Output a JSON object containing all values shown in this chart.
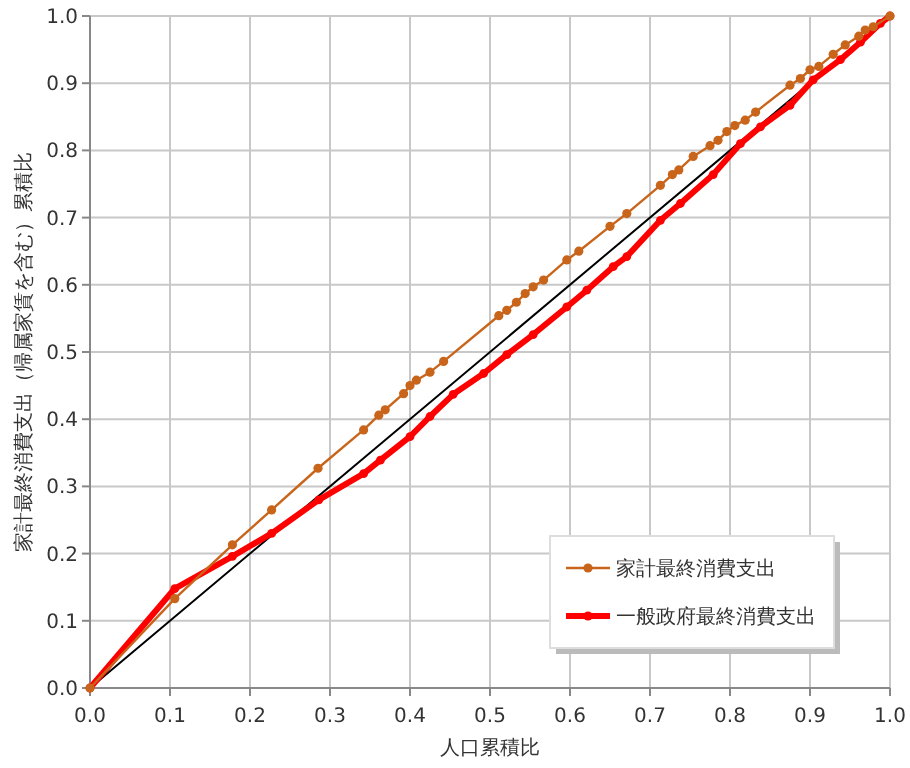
{
  "chart_data": {
    "type": "line",
    "xlabel": "人口累積比",
    "ylabel": "家計最終消費支出（帰属家賃を含む）累積比",
    "xlim": [
      0,
      1
    ],
    "ylim": [
      0,
      1
    ],
    "xticks": [
      {
        "value": 0,
        "label": "0.0"
      },
      0.1,
      0.2,
      0.3,
      0.4,
      0.5,
      0.6,
      0.7,
      0.8,
      0.9,
      {
        "value": 1,
        "label": "1.0"
      }
    ],
    "yticks": [
      {
        "value": 0,
        "label": "0.0"
      },
      0.1,
      0.2,
      0.3,
      0.4,
      0.5,
      0.6,
      0.7,
      0.8,
      0.9,
      {
        "value": 1,
        "label": "1.0"
      }
    ],
    "grid": true,
    "legend": "bottom right",
    "series": [
      {
        "name": "家計最終消費支出",
        "color": "#c8651b",
        "marker": "circle",
        "line_style": "solid",
        "x": [
          0,
          0.106,
          0.178,
          0.227,
          0.285,
          0.342,
          0.361,
          0.369,
          0.392,
          0.4,
          0.408,
          0.425,
          0.442,
          0.511,
          0.521,
          0.533,
          0.544,
          0.554,
          0.567,
          0.596,
          0.611,
          0.65,
          0.671,
          0.713,
          0.728,
          0.736,
          0.754,
          0.775,
          0.785,
          0.796,
          0.806,
          0.819,
          0.832,
          0.875,
          0.888,
          0.9,
          0.911,
          0.929,
          0.944,
          0.961,
          0.969,
          0.979,
          1
        ],
        "values": [
          0,
          0.133,
          0.213,
          0.265,
          0.327,
          0.384,
          0.406,
          0.414,
          0.438,
          0.45,
          0.458,
          0.47,
          0.486,
          0.554,
          0.562,
          0.574,
          0.587,
          0.597,
          0.607,
          0.637,
          0.65,
          0.687,
          0.706,
          0.748,
          0.764,
          0.771,
          0.791,
          0.807,
          0.815,
          0.828,
          0.837,
          0.845,
          0.857,
          0.897,
          0.907,
          0.92,
          0.925,
          0.943,
          0.957,
          0.97,
          0.979,
          0.984,
          1
        ]
      },
      {
        "name": "一般政府最終消費支出",
        "color": "#ff0000",
        "marker": "circle",
        "line_style": "solid",
        "x": [
          0,
          0.106,
          0.178,
          0.227,
          0.286,
          0.342,
          0.363,
          0.4,
          0.425,
          0.454,
          0.492,
          0.521,
          0.554,
          0.596,
          0.621,
          0.654,
          0.671,
          0.713,
          0.738,
          0.779,
          0.813,
          0.838,
          0.875,
          0.904,
          0.938,
          0.963,
          0.988,
          1
        ],
        "values": [
          0,
          0.148,
          0.196,
          0.23,
          0.28,
          0.319,
          0.339,
          0.374,
          0.404,
          0.437,
          0.468,
          0.496,
          0.526,
          0.567,
          0.592,
          0.627,
          0.642,
          0.696,
          0.721,
          0.764,
          0.81,
          0.835,
          0.867,
          0.905,
          0.935,
          0.961,
          0.989,
          1
        ]
      },
      {
        "color": "#000000",
        "marker": "none",
        "line_style": "solid",
        "x": [
          0,
          1
        ],
        "values": [
          0,
          1
        ]
      }
    ]
  }
}
